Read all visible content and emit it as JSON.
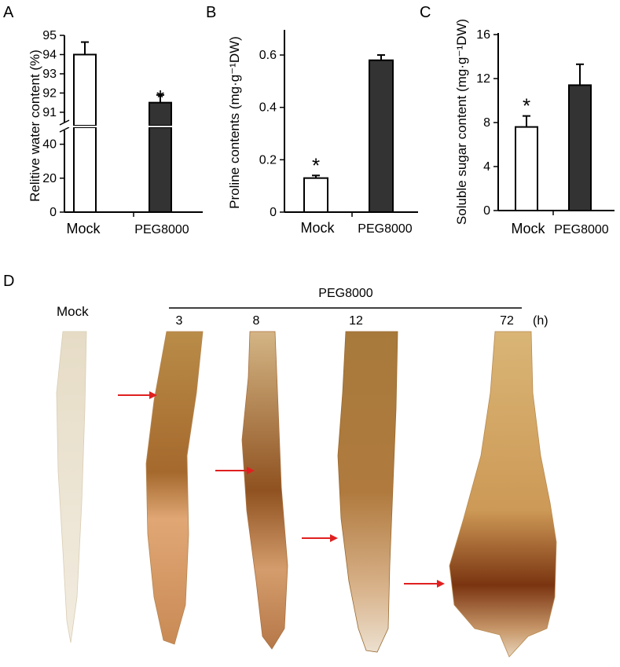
{
  "chart_data": [
    {
      "panel": "A",
      "type": "bar",
      "ylabel": "Relitive water content (%)",
      "categories": [
        "Mock",
        "PEG8000"
      ],
      "values": [
        94.0,
        91.5
      ],
      "errors": [
        0.65,
        0.4
      ],
      "significance": [
        "",
        "*"
      ],
      "fill_colors": [
        "#ffffff",
        "#333333"
      ],
      "axis_break": true,
      "lower_ticks": [
        "0",
        "20",
        "40"
      ],
      "upper_ticks": [
        "91",
        "92",
        "93",
        "94",
        "95"
      ],
      "lower_range": [
        0,
        50
      ],
      "upper_range": [
        90.3,
        95
      ]
    },
    {
      "panel": "B",
      "type": "bar",
      "ylabel": "Proline contents (mg·g⁻¹DW)",
      "categories": [
        "Mock",
        "PEG8000"
      ],
      "values": [
        0.13,
        0.58
      ],
      "errors": [
        0.01,
        0.02
      ],
      "significance": [
        "*",
        ""
      ],
      "fill_colors": [
        "#ffffff",
        "#333333"
      ],
      "ylim": [
        0,
        0.7
      ],
      "yticks": [
        "0",
        "0.2",
        "0.4",
        "0.6"
      ]
    },
    {
      "panel": "C",
      "type": "bar",
      "ylabel": "Soluble sugar content (mg·g⁻¹DW)",
      "categories": [
        "Mock",
        "PEG8000"
      ],
      "values": [
        7.6,
        11.4
      ],
      "errors": [
        1.0,
        1.9
      ],
      "significance": [
        "*",
        ""
      ],
      "fill_colors": [
        "#ffffff",
        "#333333"
      ],
      "ylim": [
        0,
        16
      ],
      "yticks": [
        "0",
        "4",
        "8",
        "12",
        "16"
      ]
    }
  ],
  "panel_d": {
    "letter": "D",
    "mock_label": "Mock",
    "treatment_label": "PEG8000",
    "timepoints": [
      "3",
      "8",
      "12",
      "72"
    ],
    "unit": "(h)",
    "arrow_color": "#e02020"
  },
  "colors": {
    "axis": "#000000",
    "bar_dark": "#333333",
    "arrow": "#e02020"
  }
}
